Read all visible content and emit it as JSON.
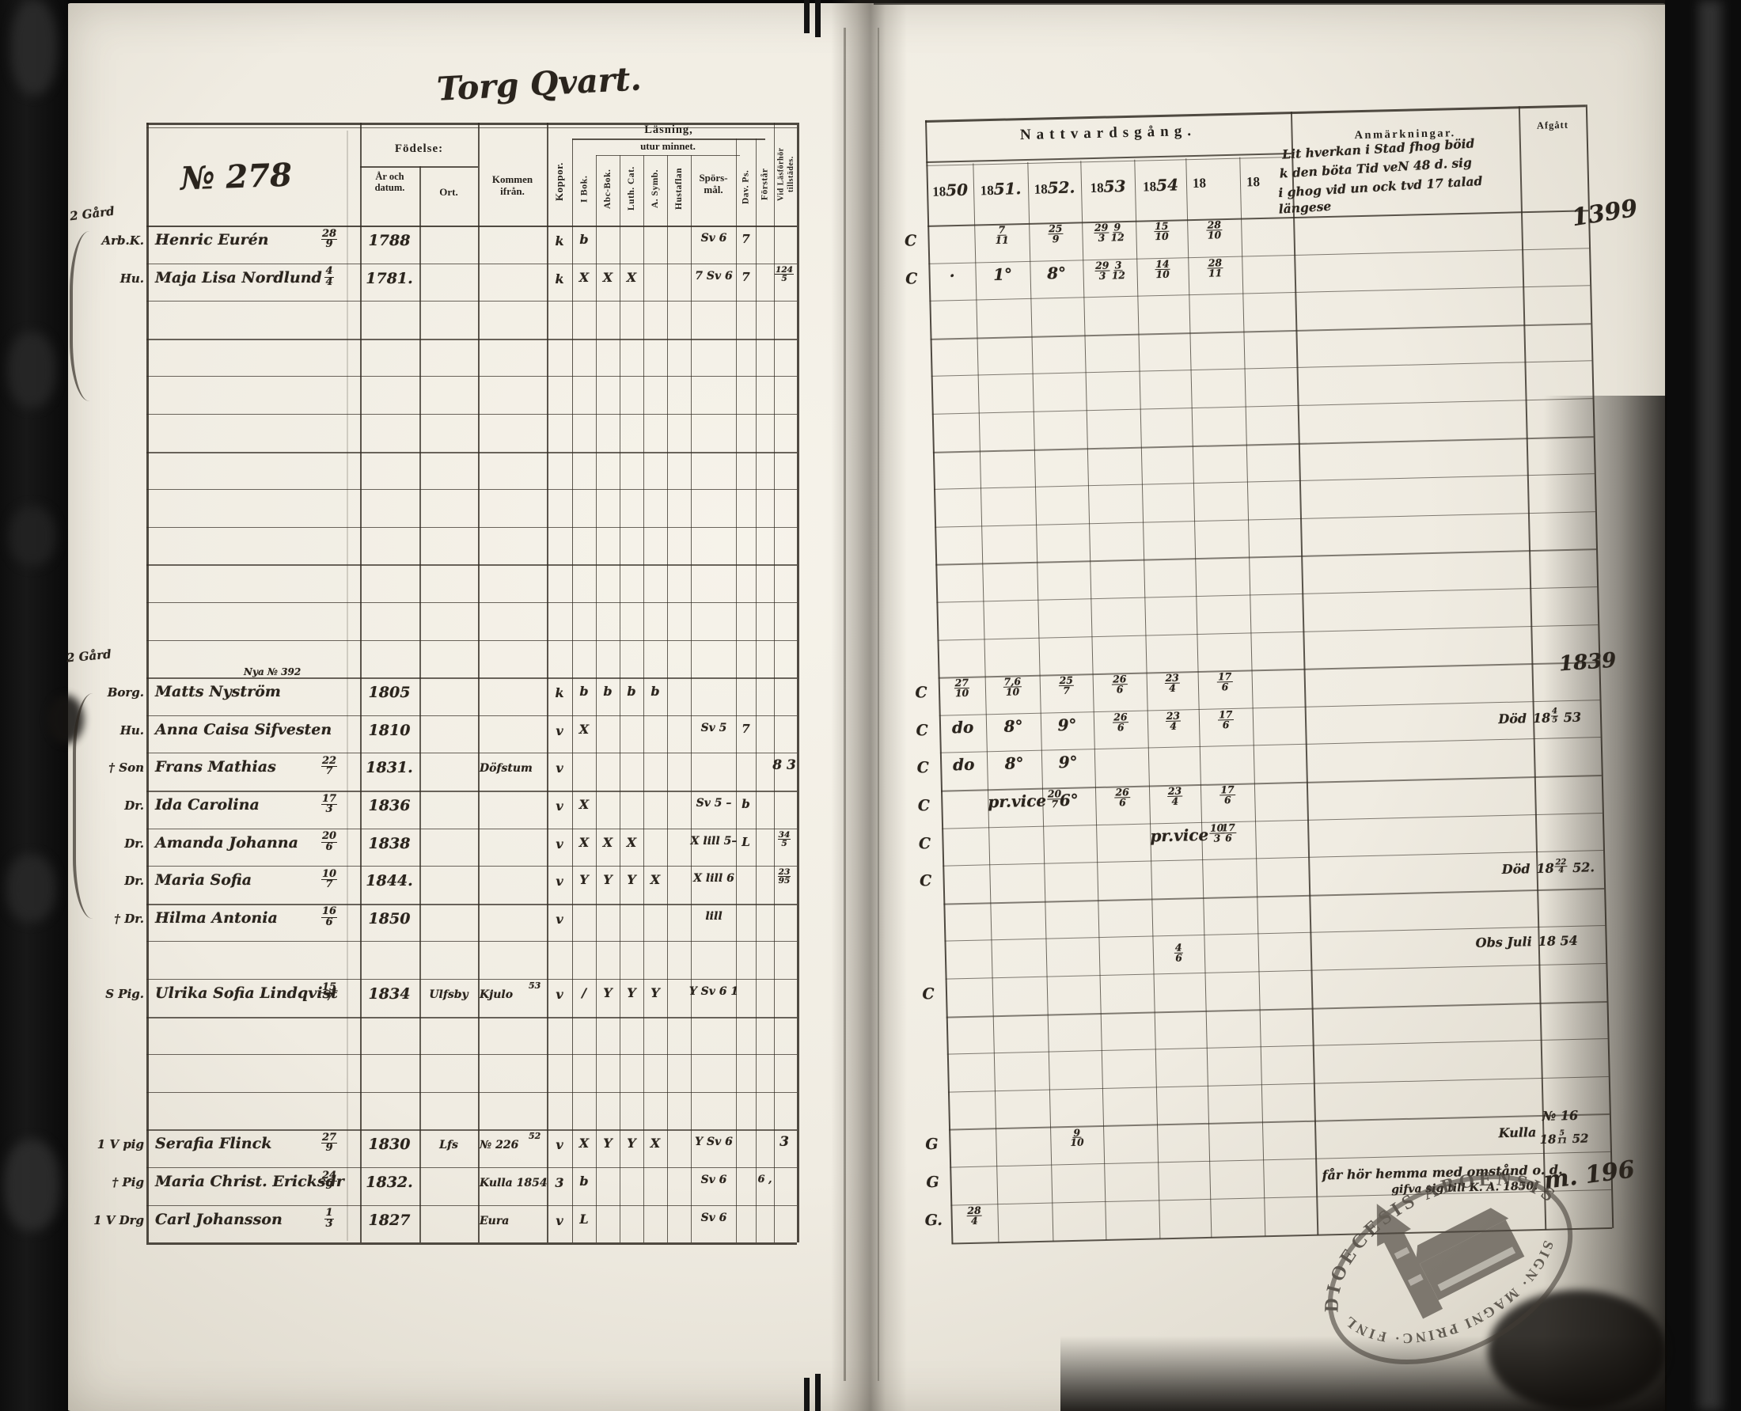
{
  "palette": {
    "film_black": "#0a0a0a",
    "paper": "#f2eee5",
    "paper_edge": "#c9c4b7",
    "ink_print": "#26221d",
    "ink_hand": "#2a241d",
    "table_line": "#332d24",
    "stamp": "#423c35"
  },
  "title": "Torg Qvart.",
  "left_table": {
    "no": "№ 278",
    "fodelse": "Födelse:",
    "ar_och_datum": "År och datum.",
    "ort": "Ort.",
    "kommen_ifran": "Kommen ifrån.",
    "koppor": "Koppor.",
    "lasning": "Läsning,",
    "utur_minnet": "utur minnet.",
    "i_bok": "I Bok.",
    "abc_bok": "Abc-Bok.",
    "luth_cat": "Luth. Cat.",
    "a_symb": "A. Symb.",
    "hustaflan": "Hustaflan",
    "sporsmal": "Spörs-mål.",
    "dav_ps": "Dav. Ps.",
    "forstar": "Förstår",
    "vid_lasforhor_1": "Vid Läsförhör",
    "vid_lasforhor_2": "tillstädes."
  },
  "right_table": {
    "nattvardsgang": "Nattvardsgång.",
    "years": [
      {
        "p": "18",
        "h": "50"
      },
      {
        "p": "18",
        "h": "51."
      },
      {
        "p": "18",
        "h": "52."
      },
      {
        "p": "18",
        "h": "53"
      },
      {
        "p": "18",
        "h": "54"
      },
      {
        "p": "18",
        "h": ""
      },
      {
        "p": "18",
        "h": ""
      }
    ],
    "anmarkningar": "Anmärkningar.",
    "afgatt": "Afgått",
    "anm_note_lines": [
      "Lit hverkan i Stad fhog böid",
      "k den böta Tid veN 48 d. sig",
      "i ghog vid un ock tvd 17 talad",
      "längese"
    ]
  },
  "margin_blocks": {
    "gard1": "2 Gård",
    "gard2": "2 Gård"
  },
  "corner_notes": {
    "top_right": "1399",
    "mid_right": "1839"
  },
  "rows": [
    {
      "line": 0,
      "margin": "Arb.K.",
      "name": "Henric Eurén",
      "date": "28/9",
      "year": "1788",
      "koppor": "k",
      "reading": [
        "b",
        "",
        "",
        "",
        ""
      ],
      "sporsmal": "Sv 6",
      "dav": "7",
      "comm_margin": "C",
      "comm": [
        "",
        "7/11",
        "25/9",
        "29/3 9/12",
        "15/10",
        "28/10",
        ""
      ]
    },
    {
      "line": 1,
      "margin": "Hu.",
      "name": "Maja Lisa Nordlund",
      "date": "4/4",
      "year": "1781.",
      "koppor": "k",
      "reading": [
        "X",
        "X",
        "X",
        "",
        ""
      ],
      "sporsmal": "7 Sv 6",
      "dav": "7",
      "vid": "124/5",
      "comm_margin": "C",
      "comm": [
        "·",
        "1°",
        "8°",
        "29/3 3/12",
        "14/10",
        "28/11",
        ""
      ]
    },
    {
      "line": 12,
      "margin": "Borg.",
      "name": "Matts Nyström",
      "name_sup": "Nya № 392",
      "year": "1805",
      "koppor": "k",
      "reading": [
        "b",
        "b",
        "b",
        "b",
        ""
      ],
      "comm_margin": "C",
      "comm": [
        "27/10",
        "7,6/10",
        "25/7",
        "26/6",
        "23/4",
        "17/6",
        ""
      ]
    },
    {
      "line": 13,
      "margin": "Hu.",
      "name": "Anna Caisa Sifvesten",
      "year": "1810",
      "koppor": "v",
      "reading": [
        "X",
        "",
        "",
        "",
        ""
      ],
      "sporsmal": "Sv 5",
      "dav": "7",
      "comm_margin": "C",
      "comm": [
        "do",
        "8°",
        "9°",
        "26/6",
        "23/4",
        "17/6",
        ""
      ],
      "anm": "Död",
      "afgatt": "18 4/5 53"
    },
    {
      "line": 14,
      "margin": "† Son",
      "name": "Frans Mathias",
      "date": "22/7",
      "year": "1831.",
      "kommen": "Döfstum",
      "koppor": "v",
      "vid": "8 3",
      "comm_margin": "C",
      "comm": [
        "do",
        "8°",
        "9°",
        "",
        "",
        "",
        ""
      ]
    },
    {
      "line": 15,
      "margin": "Dr.",
      "name": "Ida Carolina",
      "date": "17/3",
      "year": "1836",
      "koppor": "v",
      "reading": [
        "X",
        "",
        "",
        "",
        ""
      ],
      "sporsmal": "Sv 5 –",
      "dav": "b",
      "comm_margin": "C",
      "comm": [
        "",
        "pr.vice 20/7",
        "6°",
        "26/6",
        "23/4",
        "17/6",
        ""
      ]
    },
    {
      "line": 16,
      "margin": "Dr.",
      "name": "Amanda Johanna",
      "date": "20/6",
      "year": "1838",
      "koppor": "v",
      "reading": [
        "X",
        "X",
        "X",
        "",
        ""
      ],
      "sporsmal": "X lill 5–",
      "dav": "L",
      "vid": "34/5",
      "comm_margin": "C",
      "comm": [
        "",
        "",
        "",
        "",
        "pr.vice 10/3",
        "17/6",
        ""
      ]
    },
    {
      "line": 17,
      "margin": "Dr.",
      "name": "Maria Sofia",
      "date": "10/7",
      "year": "1844.",
      "koppor": "v",
      "reading": [
        "Y",
        "Y",
        "Y",
        "X",
        ""
      ],
      "sporsmal": "X lill 6",
      "vid": "23/95",
      "comm_margin": "C",
      "anm": "Död",
      "afgatt": "18 22/4 52."
    },
    {
      "line": 18,
      "margin": "† Dr.",
      "name": "Hilma Antonia",
      "date": "16/6",
      "year": "1850",
      "koppor": "v",
      "sporsmal": "lill",
      "anm": "Obs Juli",
      "afgatt": "18 54"
    },
    {
      "line": 20,
      "margin": "S Pig.",
      "name": "Ulrika Sofia Lindqvist",
      "date": "15/7",
      "year": "1834",
      "ort": "Ulfsby",
      "kommen": "Kjulo",
      "kommen_sup": "53",
      "koppor": "v",
      "reading": [
        "/",
        "Y",
        "Y",
        "Y",
        ""
      ],
      "sporsmal": "Y Sv 6 1",
      "comm_margin": "C",
      "comm": [
        "",
        "",
        "",
        "",
        "4/6",
        "",
        ""
      ]
    },
    {
      "line": 24,
      "margin": "1 V pig",
      "name": "Serafia Flinck",
      "date": "27/9",
      "year": "1830",
      "ort": "Lfs",
      "kommen": "№ 226",
      "kommen_sup": "52",
      "koppor": "v",
      "reading": [
        "X",
        "Y",
        "Y",
        "X",
        ""
      ],
      "sporsmal": "Y Sv 6",
      "vid": "3",
      "comm_margin": "G",
      "comm": [
        "",
        "",
        "9/10",
        "",
        "",
        "",
        ""
      ],
      "anm": "Kulla",
      "afgatt": "№ 16",
      "afgatt2": "18 5/11 52"
    },
    {
      "line": 25,
      "margin": "† Pig",
      "name": "Maria Christ. Ericksdr",
      "date": "24/9",
      "year": "1832.",
      "kommen": "Kulla 1854",
      "koppor": "3",
      "reading": [
        "b",
        "",
        "",
        "",
        ""
      ],
      "sporsmal": "Sv 6",
      "forstar": "6 ,",
      "comm_margin": "G",
      "anm": "får hör hemma med omstånd o. d.",
      "anm2": "gifva sig till K. A. 1850.",
      "afgatt": "m. 196"
    },
    {
      "line": 26,
      "margin": "1 V Drg",
      "name": "Carl Johansson",
      "date": "1/3",
      "year": "1827",
      "kommen": "Eura",
      "koppor": "v",
      "reading": [
        "L",
        "",
        "",
        "",
        ""
      ],
      "sporsmal": "Sv 6",
      "comm_margin": "G.",
      "comm": [
        "28/4",
        "",
        "",
        "",
        "",
        "",
        ""
      ]
    }
  ],
  "stamp": {
    "top_text": "DIOECESIS ABOENSIS",
    "bottom_text": "SIGN· MAGNI PRINC· FINL·"
  }
}
